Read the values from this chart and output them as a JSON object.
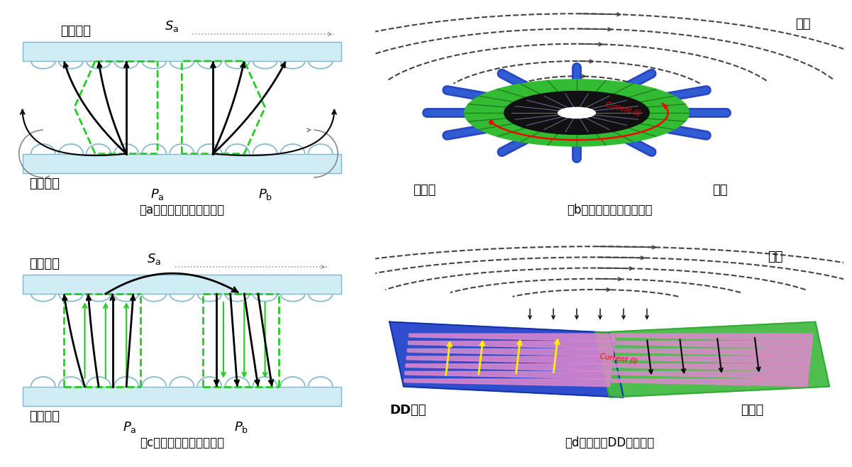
{
  "label_a": "（a）单极型线圈磁通分量",
  "label_b": "（b）单极型圆形线圈磁通",
  "label_c": "（c）双极型线圈磁通分量",
  "label_d": "（d）双极型DD线圈磁通",
  "text_ciji": "次级线圈",
  "text_chuji": "初级线圈",
  "text_citong": "磁通",
  "text_tieyang": "铁氧体",
  "text_xianquan": "线圈",
  "text_DD": "DD线圈",
  "green_color": "#22cc22",
  "blue_spoke": "#2244cc",
  "green_ring": "#33bb33",
  "blue_plate": "#2244cc",
  "green_plate": "#44bb44",
  "pink_stripe": "#dd88cc",
  "cyan_fill": "#d0ecf5",
  "cyan_edge": "#7fb8cc"
}
